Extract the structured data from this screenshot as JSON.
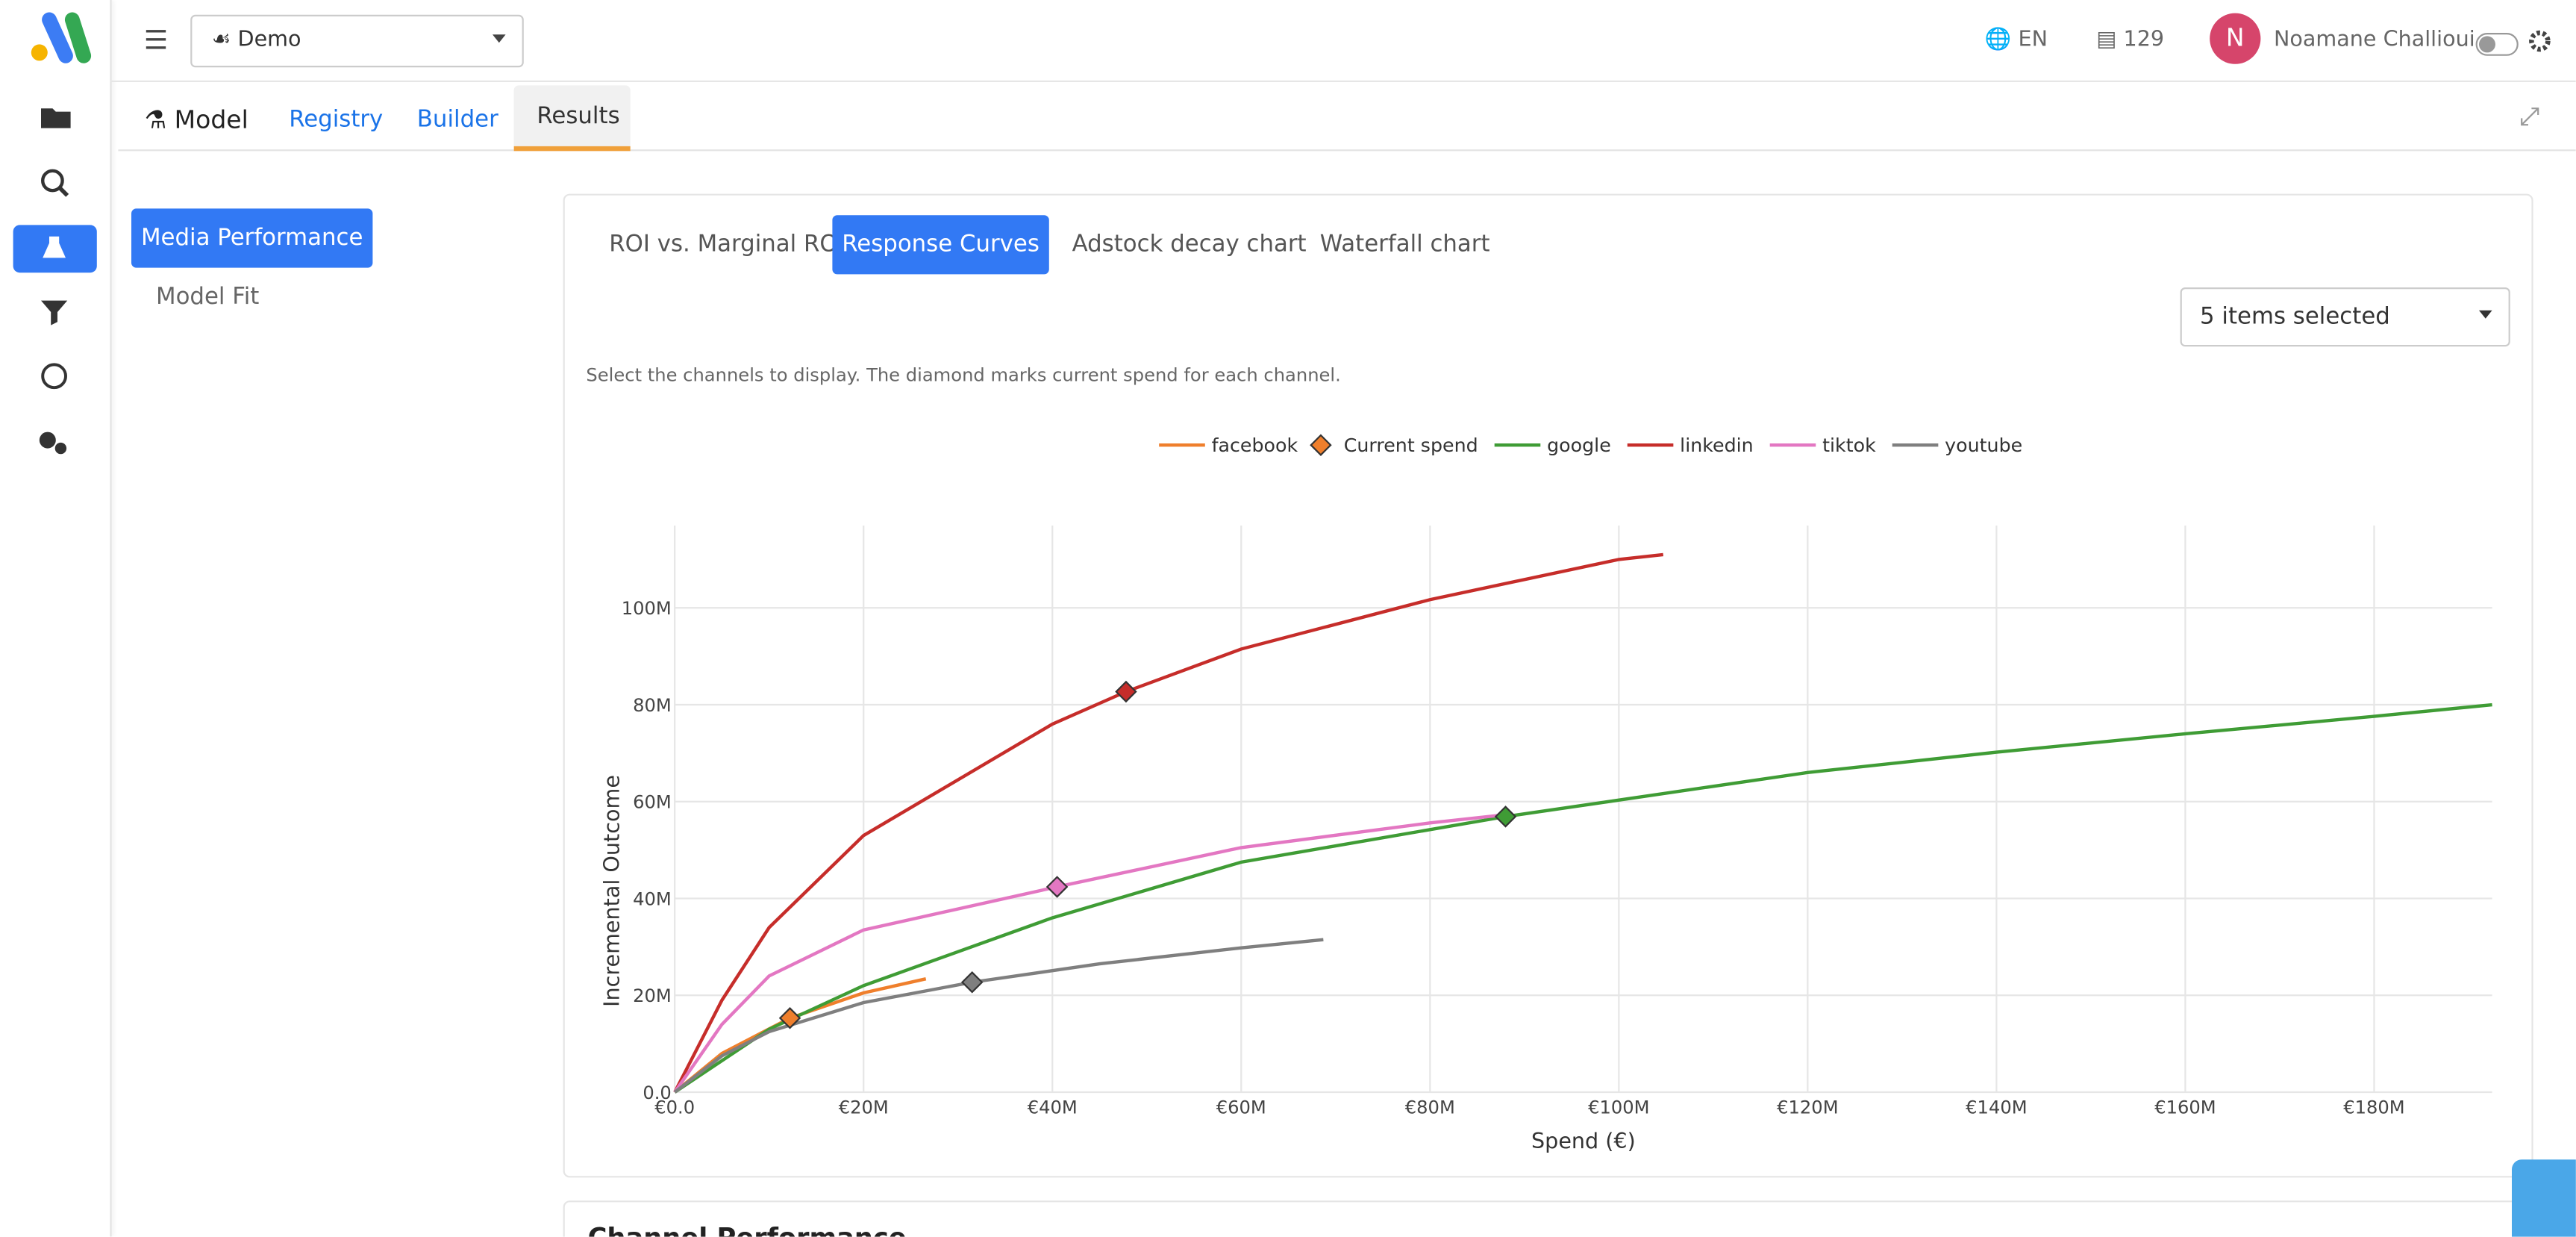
{
  "header": {
    "project": "Demo",
    "language": "EN",
    "count": "129",
    "avatar": "N",
    "user_name": "Noamane Challioui"
  },
  "nav_tabs": [
    "Model",
    "Registry",
    "Builder",
    "Results"
  ],
  "side_menu": [
    "Media Performance",
    "Model Fit"
  ],
  "chart_tabs": [
    "ROI vs. Marginal ROI",
    "Response Curves",
    "Adstock decay chart",
    "Waterfall chart"
  ],
  "channel_select": "5 items selected",
  "hint": "Select the channels to display. The diamond marks current spend for each channel.",
  "next_section": "Channel Performance",
  "chart_data": {
    "type": "line",
    "xlabel": "Spend (€)",
    "ylabel": "Incremental Outcome",
    "xlim": [
      0,
      192500000
    ],
    "ylim": [
      0,
      117000000
    ],
    "xticks": [
      {
        "value": 0,
        "label": "€0.0"
      },
      {
        "value": 20000000,
        "label": "€20M"
      },
      {
        "value": 40000000,
        "label": "€40M"
      },
      {
        "value": 60000000,
        "label": "€60M"
      },
      {
        "value": 80000000,
        "label": "€80M"
      },
      {
        "value": 100000000,
        "label": "€100M"
      },
      {
        "value": 120000000,
        "label": "€120M"
      },
      {
        "value": 140000000,
        "label": "€140M"
      },
      {
        "value": 160000000,
        "label": "€160M"
      },
      {
        "value": 180000000,
        "label": "€180M"
      }
    ],
    "yticks": [
      {
        "value": 0,
        "label": "0.0"
      },
      {
        "value": 20000000,
        "label": "20M"
      },
      {
        "value": 40000000,
        "label": "40M"
      },
      {
        "value": 60000000,
        "label": "60M"
      },
      {
        "value": 80000000,
        "label": "80M"
      },
      {
        "value": 100000000,
        "label": "100M"
      }
    ],
    "grid": true,
    "series": [
      {
        "name": "facebook",
        "color": "#ef7f2c",
        "x": [
          0,
          5000000,
          12200000,
          20000000,
          26600000
        ],
        "values": [
          0,
          8000000,
          15300000,
          20500000,
          23400000
        ]
      },
      {
        "name": "Current spend",
        "type": "scatter",
        "color": "#ef7f2c",
        "colors": [
          "#ef7f2c",
          "#3f9c35",
          "#c62d2a",
          "#e377c2",
          "#7f7f7f"
        ],
        "x": [
          12200000,
          88000000,
          47800000,
          40500000,
          31500000
        ],
        "values": [
          15300000,
          56900000,
          82700000,
          42400000,
          22700000
        ]
      },
      {
        "name": "google",
        "color": "#3f9c35",
        "x": [
          0,
          10000000,
          20000000,
          40000000,
          60000000,
          88000000,
          120000000,
          140000000,
          160000000,
          180000000,
          192500000
        ],
        "values": [
          0,
          13000000,
          22000000,
          36000000,
          47500000,
          56900000,
          66000000,
          70200000,
          74000000,
          77600000,
          80000000
        ]
      },
      {
        "name": "linkedin",
        "color": "#c62d2a",
        "x": [
          0,
          5000000,
          10000000,
          20000000,
          40000000,
          47800000,
          60000000,
          80000000,
          100000000,
          104700000
        ],
        "values": [
          0,
          19000000,
          34000000,
          53000000,
          76000000,
          82700000,
          91500000,
          101700000,
          110000000,
          111000000
        ]
      },
      {
        "name": "tiktok",
        "color": "#e377c2",
        "x": [
          0,
          5000000,
          10000000,
          20000000,
          40500000,
          60000000,
          80000000,
          88000000
        ],
        "values": [
          0,
          14000000,
          24000000,
          33500000,
          42400000,
          50500000,
          55600000,
          57300000
        ]
      },
      {
        "name": "youtube",
        "color": "#7f7f7f",
        "x": [
          0,
          5000000,
          10000000,
          20000000,
          31500000,
          45000000,
          60000000,
          68700000
        ],
        "values": [
          0,
          7500000,
          12500000,
          18500000,
          22700000,
          26500000,
          29800000,
          31500000
        ]
      }
    ]
  }
}
